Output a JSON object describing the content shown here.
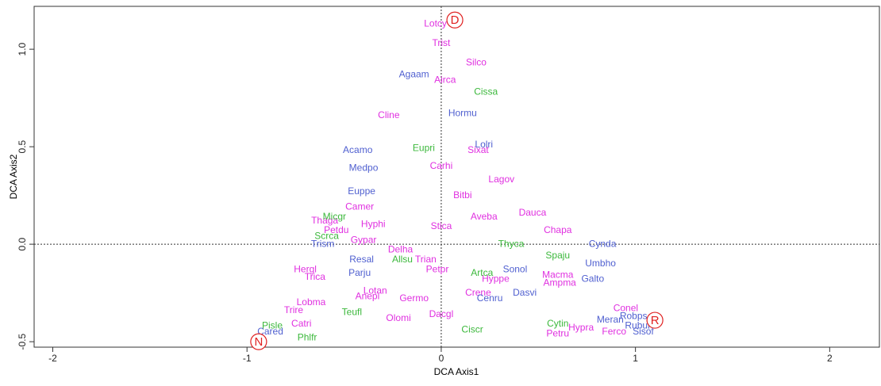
{
  "chart_data": {
    "type": "scatter",
    "x_label": "DCA Axis1",
    "y_label": "DCA Axis2",
    "xlim": [
      -2.096,
      2.256
    ],
    "ylim": [
      -0.528,
      1.22
    ],
    "xticks": [
      -2,
      -1,
      0,
      1,
      2
    ],
    "yticks": [
      -0.5,
      {
        "value": 0,
        "label": "0.0"
      },
      0.5,
      {
        "value": 1,
        "label": "1.0"
      }
    ],
    "zero_lines": true,
    "series": [
      {
        "color": "#e030e0",
        "labels": [
          "Lotcy",
          "Trist",
          "Silco",
          "Airca",
          "Cline",
          "Sixat",
          "Carhi",
          "Lagov",
          "Bitbi",
          "Camer",
          "Aveba",
          "Dauca",
          "Thaga",
          "Hyphi",
          "Stica",
          "Chapa",
          "Petdu",
          "Gypar",
          "Delha",
          "Trian",
          "Hergl",
          "Petpr",
          "Trica",
          "Macma",
          "Hyppe",
          "Ampma",
          "Lotan",
          "Crene",
          "Anepi",
          "Germo",
          "Lobma",
          "Trire",
          "Dacgl",
          "Olomi",
          "Conel",
          "Catri",
          "Hypra",
          "Ferco",
          "Petru"
        ],
        "x": [
          -0.03,
          0.0,
          0.18,
          0.02,
          -0.27,
          0.19,
          0.0,
          0.31,
          0.11,
          -0.42,
          0.22,
          0.47,
          -0.6,
          -0.35,
          0.0,
          0.6,
          -0.54,
          -0.4,
          -0.21,
          -0.08,
          -0.7,
          -0.02,
          -0.65,
          0.6,
          0.28,
          0.61,
          -0.34,
          0.19,
          -0.38,
          -0.14,
          -0.67,
          -0.76,
          0.0,
          -0.22,
          0.95,
          -0.72,
          0.72,
          0.89,
          0.6
        ],
        "y": [
          1.13,
          1.03,
          0.93,
          0.84,
          0.66,
          0.48,
          0.4,
          0.33,
          0.25,
          0.19,
          0.14,
          0.16,
          0.12,
          0.1,
          0.09,
          0.07,
          0.07,
          0.02,
          -0.03,
          -0.08,
          -0.13,
          -0.13,
          -0.17,
          -0.16,
          -0.18,
          -0.2,
          -0.24,
          -0.25,
          -0.27,
          -0.28,
          -0.3,
          -0.34,
          -0.36,
          -0.38,
          -0.33,
          -0.41,
          -0.43,
          -0.45,
          -0.46
        ]
      },
      {
        "color": "#5060d0",
        "labels": [
          "Agaam",
          "Hormu",
          "Lolri",
          "Acamo",
          "Medpo",
          "Euppe",
          "Trism",
          "Cynda",
          "Resal",
          "Umbho",
          "Sonol",
          "Parju",
          "Galto",
          "Dasvi",
          "Cenru",
          "Robps",
          "Meran",
          "Rubul",
          "Sisof",
          "Cared"
        ],
        "x": [
          -0.14,
          0.11,
          0.22,
          -0.43,
          -0.4,
          -0.41,
          -0.61,
          0.83,
          -0.41,
          0.82,
          0.38,
          -0.42,
          0.78,
          0.43,
          0.25,
          0.99,
          0.87,
          1.01,
          1.04,
          -0.88
        ],
        "y": [
          0.87,
          0.67,
          0.51,
          0.48,
          0.39,
          0.27,
          0.0,
          0.0,
          -0.08,
          -0.1,
          -0.13,
          -0.15,
          -0.18,
          -0.25,
          -0.28,
          -0.37,
          -0.39,
          -0.42,
          -0.45,
          -0.45
        ]
      },
      {
        "color": "#3cb83c",
        "labels": [
          "Cissa",
          "Eupri",
          "Micgr",
          "Scrca",
          "Thyca",
          "Spaju",
          "Allsu",
          "Artca",
          "Teufl",
          "Pisle",
          "Cytin",
          "Ciscr",
          "Phlfr"
        ],
        "x": [
          0.23,
          -0.09,
          -0.55,
          -0.59,
          0.36,
          0.6,
          -0.2,
          0.21,
          -0.46,
          -0.87,
          0.6,
          0.16,
          -0.69
        ],
        "y": [
          0.78,
          0.49,
          0.14,
          0.04,
          0.0,
          -0.06,
          -0.08,
          -0.15,
          -0.35,
          -0.42,
          -0.41,
          -0.44,
          -0.48
        ]
      }
    ],
    "annotations": [
      {
        "text": "D",
        "x": 0.07,
        "y": 1.15,
        "color": "#e02020"
      },
      {
        "text": "R",
        "x": 1.1,
        "y": -0.39,
        "color": "#e02020"
      },
      {
        "text": "N",
        "x": -0.94,
        "y": -0.5,
        "color": "#e02020"
      }
    ]
  }
}
